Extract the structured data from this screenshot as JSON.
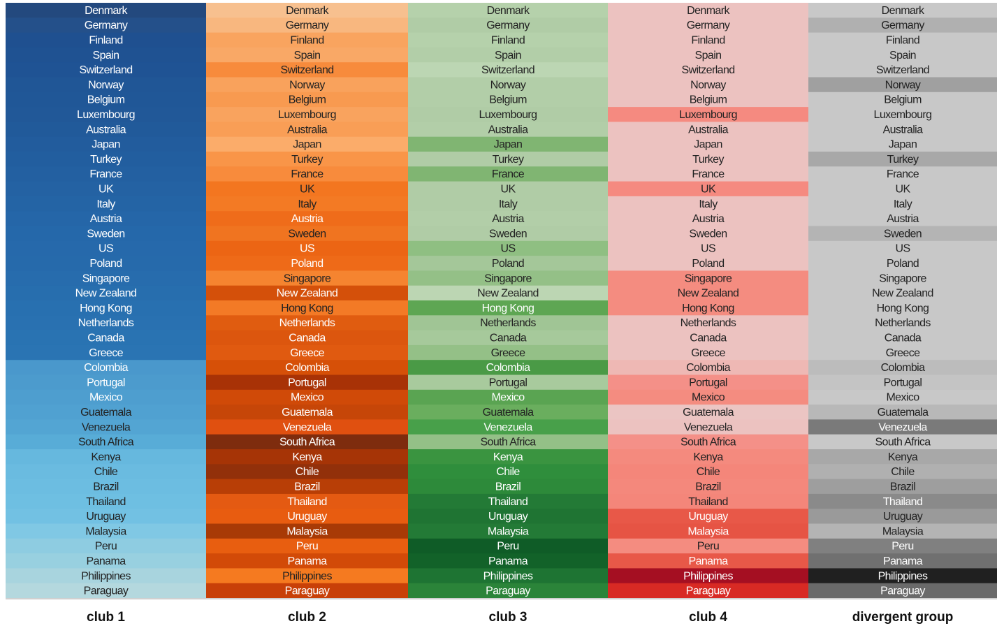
{
  "rows": [
    "Denmark",
    "Germany",
    "Finland",
    "Spain",
    "Switzerland",
    "Norway",
    "Belgium",
    "Luxembourg",
    "Australia",
    "Japan",
    "Turkey",
    "France",
    "UK",
    "Italy",
    "Austria",
    "Sweden",
    "US",
    "Poland",
    "Singapore",
    "New Zealand",
    "Hong Kong",
    "Netherlands",
    "Canada",
    "Greece",
    "Colombia",
    "Portugal",
    "Mexico",
    "Guatemala",
    "Venezuela",
    "South Africa",
    "Kenya",
    "Chile",
    "Brazil",
    "Thailand",
    "Uruguay",
    "Malaysia",
    "Peru",
    "Panama",
    "Philippines",
    "Paraguay"
  ],
  "columns": [
    {
      "label": "club 1",
      "colors": [
        "#23497e",
        "#24508a",
        "#1f5090",
        "#1f5292",
        "#1f5394",
        "#205696",
        "#205797",
        "#215898",
        "#215a9a",
        "#225c9d",
        "#225e9f",
        "#2360a1",
        "#2462a3",
        "#2464a5",
        "#2566a8",
        "#2568aa",
        "#2669ab",
        "#266aab",
        "#276cad",
        "#276eae",
        "#2870b0",
        "#2971b1",
        "#2973b2",
        "#2a74b3",
        "#4a98cc",
        "#4c9bcd",
        "#4e9ecf",
        "#50a1d1",
        "#53a5d3",
        "#58acd7",
        "#66b8de",
        "#6abbe0",
        "#6cbde1",
        "#6ebfe2",
        "#72c1e3",
        "#80c8e4",
        "#8ecce1",
        "#98d0e0",
        "#a8d4de",
        "#b4d8de"
      ]
    },
    {
      "label": "club 2",
      "colors": [
        "#f7c08f",
        "#f8b77f",
        "#f9a45f",
        "#f9a866",
        "#f78b3c",
        "#f9a25c",
        "#f89a50",
        "#f9a35e",
        "#f99e56",
        "#fbac6a",
        "#f99548",
        "#f88b3c",
        "#f37620",
        "#f37a24",
        "#ef6c1a",
        "#f07420",
        "#ec6514",
        "#ee6a18",
        "#f58430",
        "#d4500a",
        "#f37a26",
        "#e05c10",
        "#dc560e",
        "#e05a10",
        "#d65008",
        "#a83206",
        "#d04a08",
        "#c64608",
        "#e05010",
        "#7e2c0e",
        "#a63406",
        "#92300a",
        "#b83e06",
        "#e45a12",
        "#e85c10",
        "#a83a06",
        "#e85e10",
        "#d24a08",
        "#f57a20",
        "#c84008"
      ]
    },
    {
      "label": "club 3",
      "colors": [
        "#b5d1ab",
        "#b0cca6",
        "#b5d1ab",
        "#b2cea8",
        "#bcd6b3",
        "#b2cea8",
        "#b2cea8",
        "#b0cca6",
        "#b2cea8",
        "#80b572",
        "#b0cca6",
        "#80b572",
        "#b0cca6",
        "#b0cca6",
        "#b2cea8",
        "#b0cca6",
        "#8fbf82",
        "#a4c799",
        "#94c087",
        "#bcd6b3",
        "#5ea653",
        "#a0c595",
        "#a6c99b",
        "#94c087",
        "#4a9a46",
        "#a8ca9d",
        "#5aa452",
        "#6aae5e",
        "#48a04a",
        "#94c087",
        "#3a9440",
        "#2f8e3c",
        "#2d8a3a",
        "#237a36",
        "#1f7433",
        "#237a36",
        "#0f5c27",
        "#126229",
        "#1e7433",
        "#2b8439"
      ]
    },
    {
      "label": "club 4",
      "colors": [
        "#ecc2c0",
        "#ecc2c0",
        "#ecc2c0",
        "#ecc2c0",
        "#ecc2c0",
        "#ecc2c0",
        "#ecc2c0",
        "#f58a80",
        "#ecc2c0",
        "#ecc2c0",
        "#ecc2c0",
        "#ecc2c0",
        "#f58a80",
        "#ecc2c0",
        "#ecc2c0",
        "#ecc2c0",
        "#ecc2c0",
        "#ecc2c0",
        "#f48c80",
        "#f48c80",
        "#f48c80",
        "#ecc2c0",
        "#ecc2c0",
        "#ecc2c0",
        "#eeb8b4",
        "#f49088",
        "#f48c80",
        "#ebc5c3",
        "#ecc2c0",
        "#f49088",
        "#f48a7e",
        "#f4867a",
        "#f4887c",
        "#f4867a",
        "#e85848",
        "#e65444",
        "#f48c80",
        "#e85848",
        "#a50f22",
        "#d82a24"
      ]
    },
    {
      "label": "divergent group",
      "colors": [
        "#c8c8c8",
        "#b0b0b0",
        "#c8c8c8",
        "#c8c8c8",
        "#c8c8c8",
        "#a0a0a0",
        "#c8c8c8",
        "#c8c8c8",
        "#c8c8c8",
        "#c8c8c8",
        "#a8a8a8",
        "#c8c8c8",
        "#c8c8c8",
        "#c8c8c8",
        "#c8c8c8",
        "#b4b4b4",
        "#c8c8c8",
        "#c8c8c8",
        "#c8c8c8",
        "#c8c8c8",
        "#c8c8c8",
        "#c8c8c8",
        "#c8c8c8",
        "#c8c8c8",
        "#bcbcbc",
        "#c4c4c4",
        "#c8c8c8",
        "#b8b8b8",
        "#7a7a7a",
        "#c8c8c8",
        "#a8a8a8",
        "#b0b0b0",
        "#9e9e9e",
        "#8a8a8a",
        "#9a9a9a",
        "#b4b4b4",
        "#808080",
        "#707070",
        "#202020",
        "#6a6a6a"
      ]
    }
  ]
}
